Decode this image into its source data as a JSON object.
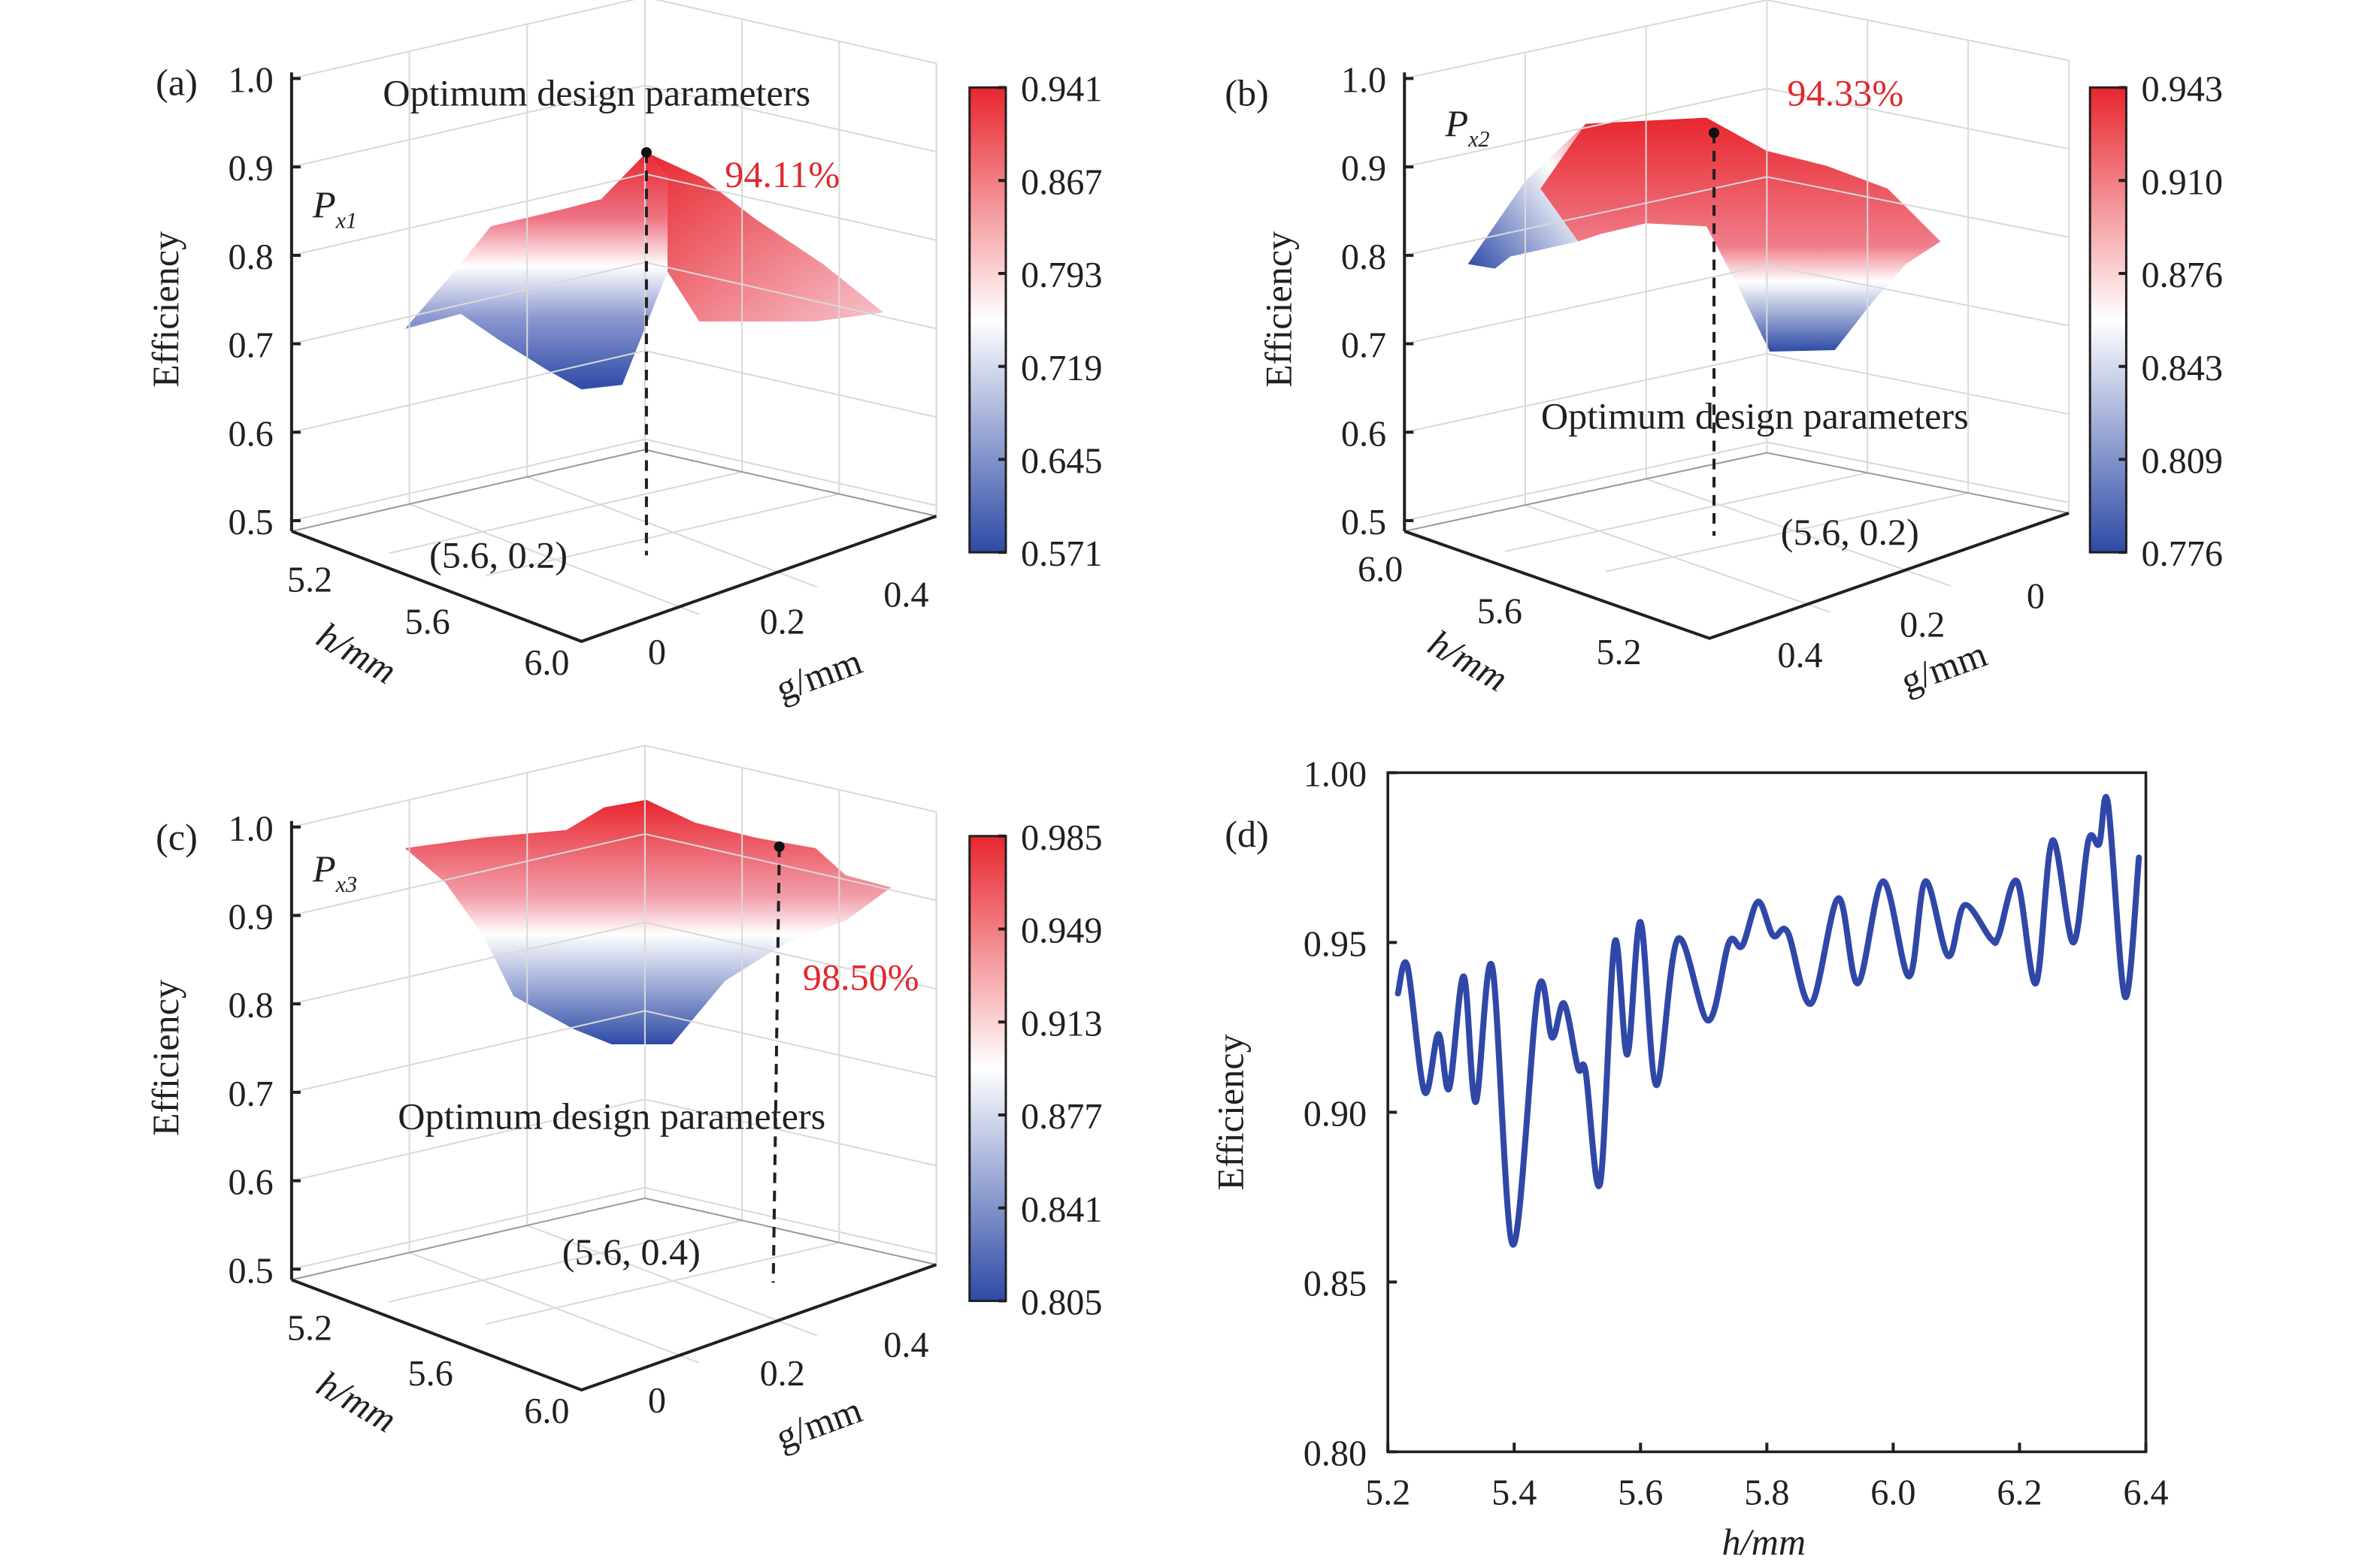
{
  "chart_data": [
    {
      "type": "surface",
      "panel": "(a)",
      "series_label": {
        "main": "P",
        "sub": "x1"
      },
      "zlabel": "Efficiency",
      "xlabel": "h/mm",
      "ylabel": "g/mm",
      "zticks": [
        "1.0",
        "0.9",
        "0.8",
        "0.7",
        "0.6",
        "0.5"
      ],
      "xticks": [
        "5.2",
        "5.6",
        "6.0"
      ],
      "yticks": [
        "0",
        "0.2",
        "0.4"
      ],
      "zlim": [
        0.5,
        1.0
      ],
      "colorbar_ticks": [
        "0.941",
        "0.867",
        "0.793",
        "0.719",
        "0.645",
        "0.571"
      ],
      "colormap": [
        "#2d4aa6",
        "#ffffff",
        "#e8262e"
      ],
      "annotation_title": "Optimum design parameters",
      "peak_label": "94.11%",
      "peak_value": 0.9411,
      "peak_point": [
        5.6,
        0.2
      ],
      "optimum_label": "(5.6, 0.2)"
    },
    {
      "type": "surface",
      "panel": "(b)",
      "series_label": {
        "main": "P",
        "sub": "x2"
      },
      "zlabel": "Efficiency",
      "xlabel": "h/mm",
      "ylabel": "g/mm",
      "zticks": [
        "1.0",
        "0.9",
        "0.8",
        "0.7",
        "0.6",
        "0.5"
      ],
      "xticks": [
        "6.0",
        "5.6",
        "5.2"
      ],
      "yticks": [
        "0.4",
        "0.2",
        "0"
      ],
      "zlim": [
        0.5,
        1.0
      ],
      "colorbar_ticks": [
        "0.943",
        "0.910",
        "0.876",
        "0.843",
        "0.809",
        "0.776"
      ],
      "colormap": [
        "#2d4aa6",
        "#ffffff",
        "#e8262e"
      ],
      "annotation_title": "Optimum design parameters",
      "peak_label": "94.33%",
      "peak_value": 0.9433,
      "peak_point": [
        5.6,
        0.2
      ],
      "optimum_label": "(5.6, 0.2)"
    },
    {
      "type": "surface",
      "panel": "(c)",
      "series_label": {
        "main": "P",
        "sub": "x3"
      },
      "zlabel": "Efficiency",
      "xlabel": "h/mm",
      "ylabel": "g/mm",
      "zticks": [
        "1.0",
        "0.9",
        "0.8",
        "0.7",
        "0.6",
        "0.5"
      ],
      "xticks": [
        "5.2",
        "5.6",
        "6.0"
      ],
      "yticks": [
        "0",
        "0.2",
        "0.4"
      ],
      "zlim": [
        0.5,
        1.0
      ],
      "colorbar_ticks": [
        "0.985",
        "0.949",
        "0.913",
        "0.877",
        "0.841",
        "0.805"
      ],
      "colormap": [
        "#2d4aa6",
        "#ffffff",
        "#e8262e"
      ],
      "annotation_title": "Optimum design parameters",
      "peak_label": "98.50%",
      "peak_value": 0.985,
      "peak_point": [
        5.6,
        0.4
      ],
      "optimum_label": "(5.6, 0.4)"
    },
    {
      "type": "line",
      "panel": "(d)",
      "xlabel": "h/mm",
      "ylabel": "Efficiency",
      "xlim": [
        5.2,
        6.4
      ],
      "ylim": [
        0.8,
        1.0
      ],
      "xticks": [
        "5.2",
        "5.4",
        "5.6",
        "5.8",
        "6.0",
        "6.2",
        "6.4"
      ],
      "yticks": [
        "1.00",
        "0.95",
        "0.90",
        "0.85",
        "0.80"
      ],
      "grid": false,
      "color": "#2f48a8",
      "series": [
        {
          "x": [
            5.216,
            5.231,
            5.258,
            5.28,
            5.297,
            5.32,
            5.339,
            5.365,
            5.398,
            5.438,
            5.46,
            5.479,
            5.501,
            5.513,
            5.536,
            5.559,
            5.579,
            5.6,
            5.625,
            5.659,
            5.707,
            5.74,
            5.761,
            5.786,
            5.81,
            5.833,
            5.87,
            5.913,
            5.944,
            5.984,
            6.025,
            6.051,
            6.087,
            6.113,
            6.155,
            6.167,
            6.196,
            6.226,
            6.252,
            6.285,
            6.309,
            6.326,
            6.34,
            6.367,
            6.389
          ],
          "y": [
            0.935,
            0.943,
            0.906,
            0.923,
            0.907,
            0.94,
            0.903,
            0.943,
            0.861,
            0.936,
            0.922,
            0.932,
            0.913,
            0.912,
            0.879,
            0.95,
            0.917,
            0.956,
            0.908,
            0.951,
            0.927,
            0.95,
            0.949,
            0.962,
            0.952,
            0.953,
            0.932,
            0.963,
            0.938,
            0.968,
            0.94,
            0.968,
            0.946,
            0.961,
            0.951,
            0.952,
            0.968,
            0.938,
            0.98,
            0.95,
            0.98,
            0.979,
            0.991,
            0.934,
            0.975
          ]
        }
      ]
    }
  ]
}
